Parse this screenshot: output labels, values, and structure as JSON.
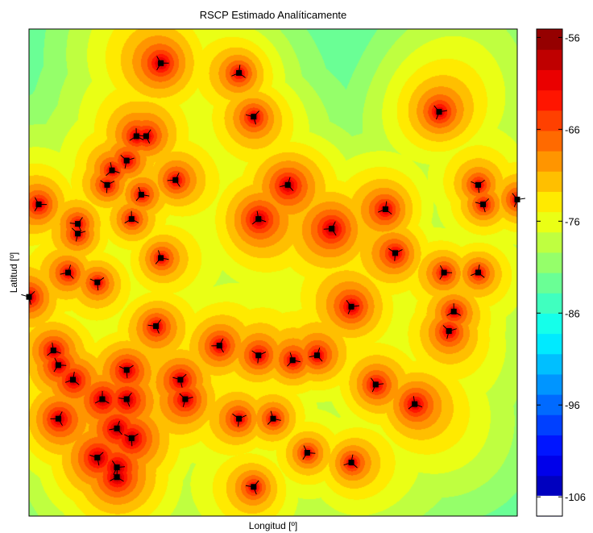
{
  "chart_data": {
    "type": "heatmap",
    "title": "RSCP Estimado Analíticamente",
    "xlabel": "Longitud [º]",
    "ylabel": "Latitud [º]",
    "colorbar": {
      "ticks": [
        -56,
        -66,
        -76,
        -86,
        -96,
        -106
      ],
      "range": [
        -108,
        -55
      ],
      "levels": 24,
      "colormap": "jet"
    },
    "stations": [
      {
        "x": 0.27,
        "y": 0.93
      },
      {
        "x": 0.43,
        "y": 0.91
      },
      {
        "x": 0.46,
        "y": 0.82
      },
      {
        "x": 0.84,
        "y": 0.83
      },
      {
        "x": 0.22,
        "y": 0.78
      },
      {
        "x": 0.24,
        "y": 0.78
      },
      {
        "x": 0.2,
        "y": 0.73
      },
      {
        "x": 0.17,
        "y": 0.71
      },
      {
        "x": 0.3,
        "y": 0.69
      },
      {
        "x": 0.16,
        "y": 0.68
      },
      {
        "x": 0.23,
        "y": 0.66
      },
      {
        "x": 0.53,
        "y": 0.68
      },
      {
        "x": 0.92,
        "y": 0.68
      },
      {
        "x": 0.02,
        "y": 0.64
      },
      {
        "x": 0.73,
        "y": 0.63
      },
      {
        "x": 0.93,
        "y": 0.64
      },
      {
        "x": 1.0,
        "y": 0.65
      },
      {
        "x": 0.21,
        "y": 0.61
      },
      {
        "x": 0.1,
        "y": 0.6
      },
      {
        "x": 0.1,
        "y": 0.58
      },
      {
        "x": 0.47,
        "y": 0.61
      },
      {
        "x": 0.62,
        "y": 0.59
      },
      {
        "x": 0.75,
        "y": 0.54
      },
      {
        "x": 0.27,
        "y": 0.53
      },
      {
        "x": 0.08,
        "y": 0.5
      },
      {
        "x": 0.14,
        "y": 0.48
      },
      {
        "x": 0.85,
        "y": 0.5
      },
      {
        "x": 0.92,
        "y": 0.5
      },
      {
        "x": 0.0,
        "y": 0.45
      },
      {
        "x": 0.66,
        "y": 0.43
      },
      {
        "x": 0.87,
        "y": 0.42
      },
      {
        "x": 0.26,
        "y": 0.39
      },
      {
        "x": 0.86,
        "y": 0.38
      },
      {
        "x": 0.05,
        "y": 0.34
      },
      {
        "x": 0.39,
        "y": 0.35
      },
      {
        "x": 0.47,
        "y": 0.33
      },
      {
        "x": 0.54,
        "y": 0.32
      },
      {
        "x": 0.59,
        "y": 0.33
      },
      {
        "x": 0.2,
        "y": 0.3
      },
      {
        "x": 0.06,
        "y": 0.31
      },
      {
        "x": 0.09,
        "y": 0.28
      },
      {
        "x": 0.31,
        "y": 0.28
      },
      {
        "x": 0.71,
        "y": 0.27
      },
      {
        "x": 0.15,
        "y": 0.24
      },
      {
        "x": 0.2,
        "y": 0.24
      },
      {
        "x": 0.32,
        "y": 0.24
      },
      {
        "x": 0.79,
        "y": 0.23
      },
      {
        "x": 0.06,
        "y": 0.2
      },
      {
        "x": 0.43,
        "y": 0.2
      },
      {
        "x": 0.5,
        "y": 0.2
      },
      {
        "x": 0.18,
        "y": 0.18
      },
      {
        "x": 0.21,
        "y": 0.16
      },
      {
        "x": 0.57,
        "y": 0.13
      },
      {
        "x": 0.66,
        "y": 0.11
      },
      {
        "x": 0.14,
        "y": 0.12
      },
      {
        "x": 0.18,
        "y": 0.1
      },
      {
        "x": 0.18,
        "y": 0.08
      },
      {
        "x": 0.46,
        "y": 0.06
      }
    ]
  }
}
